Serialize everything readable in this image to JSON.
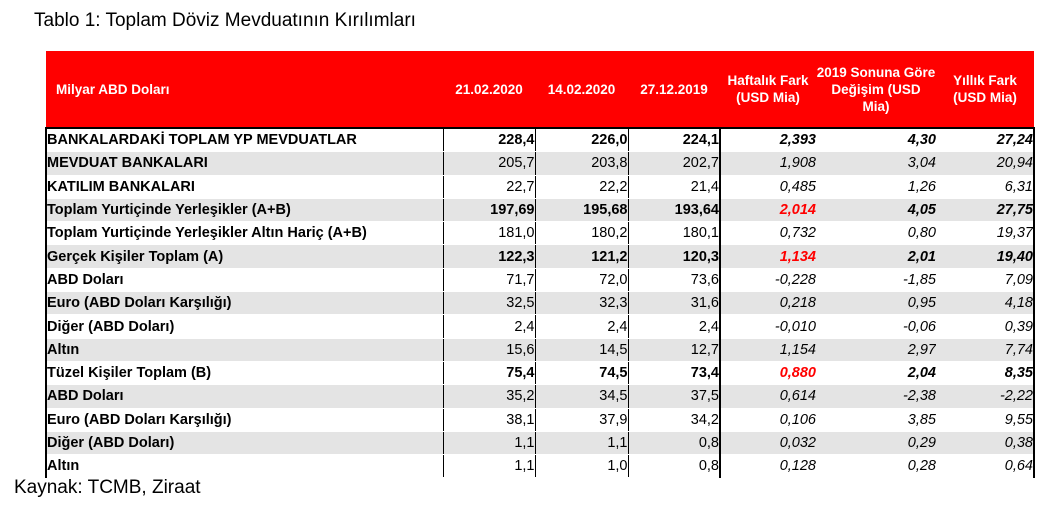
{
  "title": "Tablo 1: Toplam Döviz Mevduatının Kırılımları",
  "source": "Kaynak: TCMB, Ziraat",
  "header": {
    "label": "Milyar ABD Doları",
    "col1": "21.02.2020",
    "col2": "14.02.2020",
    "col3": "27.12.2019",
    "col4": "Haftalık Fark (USD Mia)",
    "col5": "2019 Sonuna Göre Değişim (USD Mia)",
    "col6": "Yıllık Fark (USD Mia)"
  },
  "rows": [
    {
      "label": "BANKALARDAKİ TOPLAM YP MEVDUATLAR",
      "v1": "228,4",
      "v2": "226,0",
      "v3": "224,1",
      "v4": "2,393",
      "v5": "4,30",
      "v6": "27,24"
    },
    {
      "label": "MEVDUAT BANKALARI",
      "v1": "205,7",
      "v2": "203,8",
      "v3": "202,7",
      "v4": "1,908",
      "v5": "3,04",
      "v6": "20,94"
    },
    {
      "label": "KATILIM BANKALARI",
      "v1": "22,7",
      "v2": "22,2",
      "v3": "21,4",
      "v4": "0,485",
      "v5": "1,26",
      "v6": "6,31"
    },
    {
      "label": "Toplam Yurtiçinde Yerleşikler (A+B)",
      "v1": "197,69",
      "v2": "195,68",
      "v3": "193,64",
      "v4": "2,014",
      "v5": "4,05",
      "v6": "27,75"
    },
    {
      "label": "Toplam Yurtiçinde Yerleşikler Altın Hariç (A+B)",
      "v1": "181,0",
      "v2": "180,2",
      "v3": "180,1",
      "v4": "0,732",
      "v5": "0,80",
      "v6": "19,37"
    },
    {
      "label": "Gerçek Kişiler Toplam (A)",
      "v1": "122,3",
      "v2": "121,2",
      "v3": "120,3",
      "v4": "1,134",
      "v5": "2,01",
      "v6": "19,40"
    },
    {
      "label": "ABD Doları",
      "v1": "71,7",
      "v2": "72,0",
      "v3": "73,6",
      "v4": "-0,228",
      "v5": "-1,85",
      "v6": "7,09"
    },
    {
      "label": "Euro (ABD Doları Karşılığı)",
      "v1": "32,5",
      "v2": "32,3",
      "v3": "31,6",
      "v4": "0,218",
      "v5": "0,95",
      "v6": "4,18"
    },
    {
      "label": "Diğer (ABD Doları)",
      "v1": "2,4",
      "v2": "2,4",
      "v3": "2,4",
      "v4": "-0,010",
      "v5": "-0,06",
      "v6": "0,39"
    },
    {
      "label": "Altın",
      "v1": "15,6",
      "v2": "14,5",
      "v3": "12,7",
      "v4": "1,154",
      "v5": "2,97",
      "v6": "7,74"
    },
    {
      "label": "Tüzel Kişiler Toplam (B)",
      "v1": "75,4",
      "v2": "74,5",
      "v3": "73,4",
      "v4": "0,880",
      "v5": "2,04",
      "v6": "8,35"
    },
    {
      "label": "ABD Doları",
      "v1": "35,2",
      "v2": "34,5",
      "v3": "37,5",
      "v4": "0,614",
      "v5": "-2,38",
      "v6": "-2,22"
    },
    {
      "label": "Euro (ABD Doları Karşılığı)",
      "v1": "38,1",
      "v2": "37,9",
      "v3": "34,2",
      "v4": "0,106",
      "v5": "3,85",
      "v6": "9,55"
    },
    {
      "label": "Diğer (ABD Doları)",
      "v1": "1,1",
      "v2": "1,1",
      "v3": "0,8",
      "v4": "0,032",
      "v5": "0,29",
      "v6": "0,38"
    },
    {
      "label": "Altın",
      "v1": "1,1",
      "v2": "1,0",
      "v3": "0,8",
      "v4": "0,128",
      "v5": "0,28",
      "v6": "0,64"
    }
  ],
  "colors": {
    "header_bg": "#ff0000",
    "highlight": "#ff0000",
    "row_shade": "#e4e4e4"
  }
}
